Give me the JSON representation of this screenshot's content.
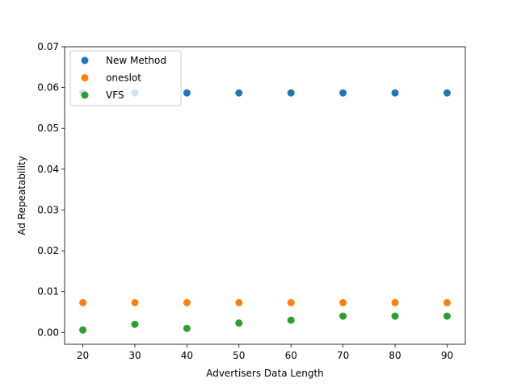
{
  "chart_data": {
    "type": "scatter",
    "title": "",
    "xlabel": "Advertisers Data Length",
    "ylabel": "Ad Repeatability",
    "xlim": [
      16.5,
      93.5
    ],
    "ylim": [
      -0.0029,
      0.07
    ],
    "xticks": [
      20,
      30,
      40,
      50,
      60,
      70,
      80,
      90
    ],
    "yticks": [
      0.0,
      0.01,
      0.02,
      0.03,
      0.04,
      0.05,
      0.06,
      0.07
    ],
    "ytick_labels": [
      "0.00",
      "0.01",
      "0.02",
      "0.03",
      "0.04",
      "0.05",
      "0.06",
      "0.07"
    ],
    "grid": false,
    "legend": "top-left",
    "x": [
      20,
      30,
      40,
      50,
      60,
      70,
      80,
      90
    ],
    "series": [
      {
        "name": "New Method",
        "color": "#1f77b4",
        "values": [
          0.0587,
          0.0587,
          0.0587,
          0.0587,
          0.0587,
          0.0587,
          0.0587,
          0.0587
        ]
      },
      {
        "name": "oneslot",
        "color": "#ff7f0e",
        "values": [
          0.0073,
          0.0073,
          0.0073,
          0.0073,
          0.0073,
          0.0073,
          0.0073,
          0.0073
        ]
      },
      {
        "name": "VFS",
        "color": "#2ca02c",
        "values": [
          0.0006,
          0.002,
          0.001,
          0.0023,
          0.003,
          0.004,
          0.004,
          0.004
        ]
      }
    ]
  }
}
